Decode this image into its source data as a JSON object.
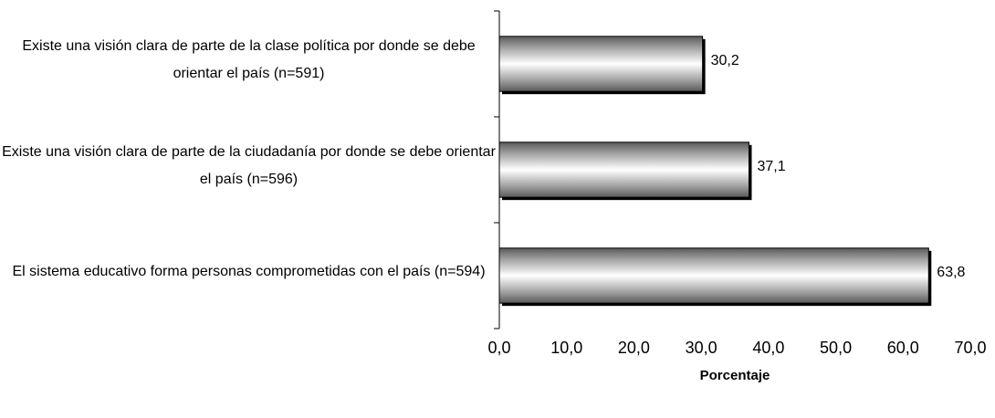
{
  "chart_data": {
    "type": "bar",
    "orientation": "horizontal",
    "x_axis_label": "Porcentaje",
    "categories": [
      "Existe una visión clara de parte de la clase política por donde se debe orientar el país (n=591)",
      "Existe una visión clara de parte de la ciudadanía por donde se debe orientar el país (n=596)",
      "El sistema educativo forma personas comprometidas con el país (n=594)"
    ],
    "values": [
      30.2,
      37.1,
      63.8
    ],
    "value_labels": [
      "30,2",
      "37,1",
      "63,8"
    ],
    "xlim": [
      0,
      70
    ],
    "xticks": [
      {
        "value": 0,
        "label": "0,0"
      },
      {
        "value": 10,
        "label": "10,0"
      },
      {
        "value": 20,
        "label": "20,0"
      },
      {
        "value": 30,
        "label": "30,0"
      },
      {
        "value": 40,
        "label": "40,0"
      },
      {
        "value": 50,
        "label": "50,0"
      },
      {
        "value": 60,
        "label": "60,0"
      },
      {
        "value": 70,
        "label": "70,0"
      }
    ],
    "color": "#808080",
    "grid": false
  }
}
